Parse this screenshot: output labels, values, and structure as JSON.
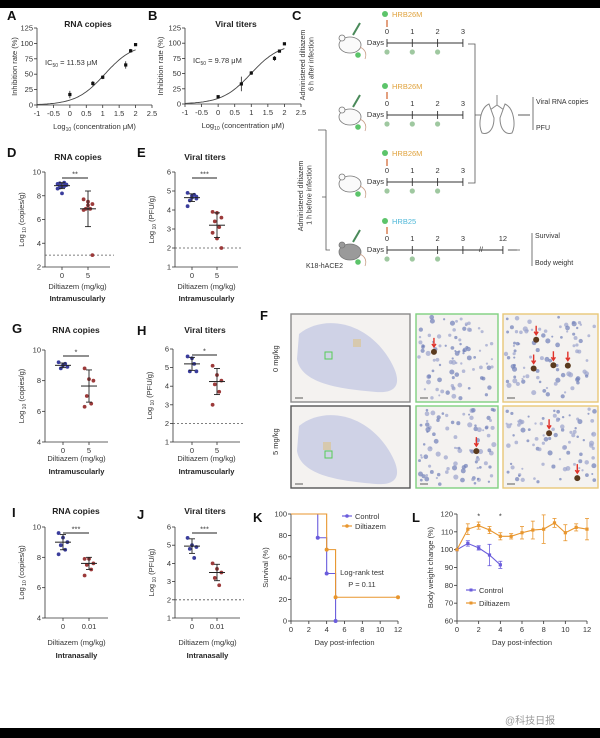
{
  "colors": {
    "group0": "#3a3d9c",
    "group1": "#9c3a3a",
    "control": "#6a5cdc",
    "diltiazem": "#e8962e",
    "hrb26m": "#e0a23c",
    "hrb25": "#4fb8d8",
    "virus": "#5cc46a",
    "drop": "#9fc8a0",
    "lod": "#555555"
  },
  "watermark": "@科技日报",
  "schematic": {
    "label": "C",
    "group_top": "Administered diltiazem 6 h after infection",
    "group_bottom": "Administered diltiazem 1 h before infection",
    "days_label": "Days",
    "rows": [
      {
        "strain": "HRB26M",
        "strain_color": "#e0a23c",
        "days": [
          "0",
          "1",
          "2",
          "3"
        ]
      },
      {
        "strain": "HRB26M",
        "strain_color": "#e0a23c",
        "days": [
          "0",
          "1",
          "2",
          "3"
        ]
      },
      {
        "strain": "HRB26M",
        "strain_color": "#e0a23c",
        "days": [
          "0",
          "1",
          "2",
          "3"
        ]
      },
      {
        "strain": "HRB25",
        "strain_color": "#4fb8d8",
        "days": [
          "0",
          "1",
          "2",
          "3",
          "12"
        ]
      }
    ],
    "mouse_model": "K18-hACE2",
    "outcomes_lung": [
      "Viral RNA copies",
      "PFU"
    ],
    "outcomes_survival": [
      "Survival",
      "Body weight"
    ],
    "break_mark": "//"
  },
  "histology": {
    "label": "F",
    "rows": [
      "0 mg/kg",
      "5 mg/kg"
    ]
  },
  "chart_data": [
    {
      "id": "A",
      "type": "scatter",
      "title": "RNA copies",
      "ylabel": "Inhibition rate (%)",
      "xlabel_parts": [
        "Log",
        "10",
        " (concentration μM)"
      ],
      "annotation_parts": [
        "IC",
        "50",
        " = 11.53 μM"
      ],
      "ic50_log": 1.062,
      "hill": 1.0,
      "xlim": [
        -1,
        2.5
      ],
      "xticks": [
        "-1",
        "-0.5",
        "0",
        "0.5",
        "1",
        "1.5",
        "2",
        "2.5"
      ],
      "ylim": [
        0,
        125
      ],
      "yticks": [
        "0",
        "25",
        "50",
        "75",
        "100",
        "125"
      ],
      "x": [
        0,
        0.7,
        1,
        1.7,
        1.85,
        2
      ],
      "y": [
        17,
        35,
        45,
        65,
        88,
        98
      ],
      "err": [
        6,
        4,
        3,
        6,
        3,
        1
      ]
    },
    {
      "id": "B",
      "type": "scatter",
      "title": "Viral titers",
      "ylabel": "Inhibition rate (%)",
      "xlabel_parts": [
        "Log",
        "10",
        " (concentration μM)"
      ],
      "annotation_parts": [
        "IC",
        "50",
        " = 9.78 μM"
      ],
      "ic50_log": 0.99,
      "hill": 1.0,
      "xlim": [
        -1,
        2.5
      ],
      "xticks": [
        "-1",
        "-0.5",
        "0",
        "0.5",
        "1",
        "1.5",
        "2",
        "2.5"
      ],
      "ylim": [
        0,
        125
      ],
      "yticks": [
        "0",
        "25",
        "50",
        "75",
        "100",
        "125"
      ],
      "x": [
        0,
        0.7,
        1,
        1.7,
        1.85,
        2
      ],
      "y": [
        12,
        33,
        51,
        75,
        87,
        99
      ],
      "err": [
        2,
        12,
        3,
        4,
        2,
        1
      ]
    },
    {
      "id": "D",
      "type": "dot",
      "title": "RNA copies",
      "ylabel_parts": [
        "Log",
        " 10",
        " (copies/g)"
      ],
      "xlabel": "Diltiazem (mg/kg)",
      "route": "Intramuscularly",
      "categories": [
        "0",
        "5"
      ],
      "ylim": [
        2,
        10
      ],
      "yticks": [
        "2",
        "4",
        "6",
        "8",
        "10"
      ],
      "lod": 3,
      "sig": "**",
      "groups": [
        [
          9.0,
          8.8,
          8.9,
          8.7,
          9.1,
          8.6,
          8.2,
          8.95,
          9.05,
          8.8
        ],
        [
          7.7,
          7.5,
          7.3,
          6.9,
          6.9,
          6.8,
          7.2,
          3.0
        ]
      ],
      "mean": [
        8.85,
        6.9
      ],
      "sd": [
        0.25,
        1.5
      ]
    },
    {
      "id": "E",
      "type": "dot",
      "title": "Viral titers",
      "ylabel_parts": [
        "Log",
        " 10",
        " (PFU/g)"
      ],
      "xlabel": "Diltiazem (mg/kg)",
      "route": "Intramuscularly",
      "categories": [
        "0",
        "5"
      ],
      "ylim": [
        1,
        6
      ],
      "yticks": [
        "1",
        "2",
        "3",
        "4",
        "5",
        "6"
      ],
      "lod": 2,
      "sig": "***",
      "groups": [
        [
          4.9,
          4.75,
          4.6,
          4.5,
          4.8,
          4.2,
          4.65,
          4.7
        ],
        [
          3.9,
          3.85,
          3.6,
          3.4,
          3.1,
          2.8,
          2.5,
          2.0
        ]
      ],
      "mean": [
        4.65,
        3.2
      ],
      "sd": [
        0.2,
        0.65
      ]
    },
    {
      "id": "G",
      "type": "dot",
      "title": "RNA copies",
      "ylabel_parts": [
        "Log",
        " 10",
        " (copies/g)"
      ],
      "xlabel": "Diltiazem (mg/kg)",
      "route": "Intramuscularly",
      "categories": [
        "0",
        "5"
      ],
      "ylim": [
        4,
        10
      ],
      "yticks": [
        "4",
        "6",
        "8",
        "10"
      ],
      "lod": null,
      "sig": "*",
      "groups": [
        [
          9.2,
          9.0,
          8.9,
          8.8,
          9.1
        ],
        [
          8.8,
          8.1,
          8.0,
          7.0,
          6.5,
          6.3
        ]
      ],
      "mean": [
        9.0,
        7.65
      ],
      "sd": [
        0.15,
        1.05
      ]
    },
    {
      "id": "H",
      "type": "dot",
      "title": "Viral titers",
      "ylabel_parts": [
        "Log",
        " 10",
        " (PFU/g)"
      ],
      "xlabel": "Diltiazem (mg/kg)",
      "route": "Intramuscularly",
      "categories": [
        "0",
        "5"
      ],
      "ylim": [
        1,
        6
      ],
      "yticks": [
        "1",
        "2",
        "3",
        "4",
        "5",
        "6"
      ],
      "lod": 2,
      "sig": "*",
      "groups": [
        [
          5.6,
          5.5,
          4.8,
          4.8,
          5.2
        ],
        [
          5.1,
          4.6,
          4.3,
          4.1,
          3.7,
          3.0
        ]
      ],
      "mean": [
        5.2,
        4.25
      ],
      "sd": [
        0.35,
        0.7
      ]
    },
    {
      "id": "I",
      "type": "dot",
      "title": "RNA copies",
      "ylabel_parts": [
        "Log",
        " 10",
        " (copies/g)"
      ],
      "xlabel": "Diltiazem (mg/kg)",
      "route": "Intranasally",
      "categories": [
        "0",
        "0.01"
      ],
      "ylim": [
        4,
        10
      ],
      "yticks": [
        "4",
        "6",
        "8",
        "10"
      ],
      "lod": null,
      "sig": "***",
      "groups": [
        [
          9.6,
          9.3,
          9.0,
          8.8,
          8.5,
          8.2
        ],
        [
          7.9,
          7.9,
          7.6,
          7.5,
          7.2,
          6.8
        ]
      ],
      "mean": [
        9.0,
        7.6
      ],
      "sd": [
        0.5,
        0.4
      ]
    },
    {
      "id": "J",
      "type": "dot",
      "title": "Viral titers",
      "ylabel_parts": [
        "Log",
        " 10",
        " (PFU/g)"
      ],
      "xlabel": "Diltiazem (mg/kg)",
      "route": "Intranasally",
      "categories": [
        "0",
        "0.01"
      ],
      "ylim": [
        1,
        6
      ],
      "yticks": [
        "1",
        "2",
        "3",
        "4",
        "5",
        "6"
      ],
      "lod": 2,
      "sig": "***",
      "groups": [
        [
          5.4,
          5.0,
          4.9,
          4.8,
          4.3
        ],
        [
          4.0,
          3.7,
          3.5,
          3.2,
          2.8
        ]
      ],
      "mean": [
        4.95,
        3.5
      ],
      "sd": [
        0.4,
        0.45
      ]
    },
    {
      "id": "K",
      "type": "line",
      "title": "",
      "ylabel": "Survival (%)",
      "xlabel": "Day post-infection",
      "xlim": [
        0,
        12
      ],
      "xticks": [
        "0",
        "2",
        "4",
        "6",
        "8",
        "10",
        "12"
      ],
      "ylim": [
        0,
        100
      ],
      "yticks": [
        "0",
        "20",
        "40",
        "60",
        "80",
        "100"
      ],
      "annotation": [
        "Log-rank test",
        "P = 0.11"
      ],
      "legend": "top-right",
      "series": [
        {
          "name": "Control",
          "x": [
            0,
            3,
            4,
            5
          ],
          "y": [
            100,
            77.8,
            44.4,
            0
          ]
        },
        {
          "name": "Diltiazem",
          "x": [
            0,
            4,
            5,
            12
          ],
          "y": [
            100,
            66.7,
            22.2,
            22.2
          ]
        }
      ]
    },
    {
      "id": "L",
      "type": "line",
      "title": "",
      "ylabel": "Body weight change (%)",
      "xlabel": "Day post-infection",
      "xlim": [
        0,
        12
      ],
      "xticks": [
        "0",
        "2",
        "4",
        "6",
        "8",
        "10",
        "12"
      ],
      "ylim": [
        60,
        120
      ],
      "yticks": [
        "60",
        "70",
        "80",
        "90",
        "100",
        "110",
        "120"
      ],
      "sig_days": [
        2,
        4
      ],
      "sig": "*",
      "legend": "center-left",
      "series": [
        {
          "name": "Control",
          "x": [
            0,
            1,
            2,
            3,
            4
          ],
          "y": [
            100,
            103.5,
            101,
            97,
            91.5
          ],
          "err": [
            0,
            1.5,
            1.2,
            6,
            2
          ]
        },
        {
          "name": "Diltiazem",
          "x": [
            0,
            1,
            2,
            3,
            4,
            5,
            6,
            7,
            8,
            9,
            10,
            11,
            12
          ],
          "y": [
            100,
            111.5,
            113.5,
            111,
            107.5,
            107.5,
            109.5,
            111,
            111.5,
            115,
            109.5,
            112.5,
            111.5
          ],
          "err": [
            0,
            3,
            2,
            2,
            2,
            1.5,
            3.5,
            5,
            8,
            2.5,
            4.5,
            2,
            6
          ]
        }
      ]
    }
  ]
}
